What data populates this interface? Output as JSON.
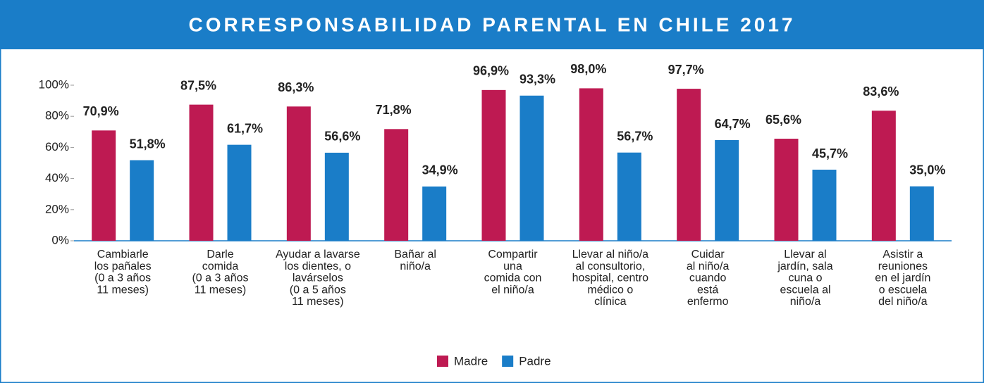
{
  "chart_data": {
    "type": "bar",
    "title": "CORRESPONSABILIDAD PARENTAL EN CHILE 2017",
    "categories": [
      "Cambiarle\nlos pañales\n(0  a 3 años\n11 meses)",
      "Darle\ncomida\n(0  a 3 años\n11 meses)",
      "Ayudar a lavarse\nlos dientes, o\nlavárselos\n(0  a 5 años\n11 meses)",
      "Bañar al\nniño/a",
      "Compartir\nuna\ncomida con\nel niño/a",
      "Llevar al niño/a\nal consultorio,\nhospital, centro\nmédico o\nclínica",
      "Cuidar\nal niño/a\ncuando\nestá\nenfermo",
      "Llevar al\njardín, sala\ncuna o\nescuela al\nniño/a",
      "Asistir a\nreuniones\nen el jardín\no escuela\ndel niño/a"
    ],
    "series": [
      {
        "name": "Madre",
        "color": "#be1a52",
        "values": [
          70.9,
          87.5,
          86.3,
          71.8,
          96.9,
          98.0,
          97.7,
          65.6,
          83.6
        ],
        "value_labels": [
          "70,9%",
          "87,5%",
          "86,3%",
          "71,8%",
          "96,9%",
          "98,0%",
          "97,7%",
          "65,6%",
          "83,6%"
        ]
      },
      {
        "name": "Padre",
        "color": "#1a7dc8",
        "values": [
          51.8,
          61.7,
          56.6,
          34.9,
          93.3,
          56.7,
          64.7,
          45.7,
          35.0
        ],
        "value_labels": [
          "51,8%",
          "61,7%",
          "56,6%",
          "34,9%",
          "93,3%",
          "56,7%",
          "64,7%",
          "45,7%",
          "35,0%"
        ]
      }
    ],
    "ylim": [
      0,
      100
    ],
    "yticks": [
      {
        "value": 0,
        "label": "0%"
      },
      {
        "value": 20,
        "label": "20%"
      },
      {
        "value": 40,
        "label": "40%"
      },
      {
        "value": 60,
        "label": "60%"
      },
      {
        "value": 80,
        "label": "80%"
      },
      {
        "value": 100,
        "label": "100%"
      }
    ],
    "legend": "bottom"
  }
}
